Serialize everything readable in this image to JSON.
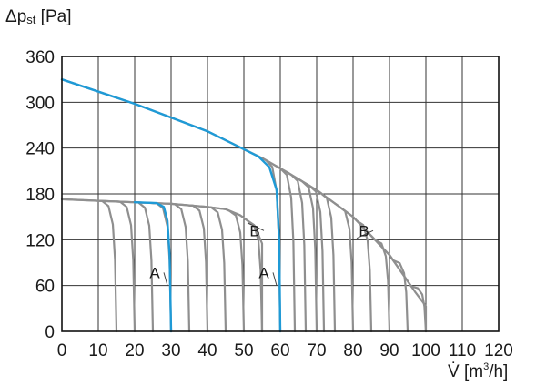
{
  "chart_data": {
    "type": "line",
    "ylabel_main": "Δp",
    "ylabel_sub": "st",
    "ylabel_unit": " [Pa]",
    "xlabel_main": "V̇ [m",
    "xlabel_sup": "3",
    "xlabel_tail": "/h]",
    "xlim": [
      0,
      120
    ],
    "ylim": [
      0,
      360
    ],
    "x_ticks": [
      0,
      10,
      20,
      30,
      40,
      50,
      60,
      70,
      80,
      90,
      100,
      110,
      120
    ],
    "y_ticks": [
      0,
      60,
      120,
      180,
      240,
      300,
      360
    ],
    "grid": true,
    "colors": {
      "family": "#8f8f8f",
      "highlight": "#1f9ad6"
    },
    "envelope_A": [
      [
        0,
        173
      ],
      [
        10,
        171
      ],
      [
        20,
        169
      ],
      [
        30,
        167
      ],
      [
        40,
        163
      ],
      [
        45,
        160
      ],
      [
        49,
        152
      ],
      [
        53,
        138
      ],
      [
        55,
        115
      ]
    ],
    "cutoffs_A": [
      15,
      20,
      25,
      30,
      35,
      40,
      45,
      50,
      55
    ],
    "envelope_B": [
      [
        0,
        330
      ],
      [
        20,
        298
      ],
      [
        40,
        262
      ],
      [
        55,
        227
      ],
      [
        62,
        208
      ],
      [
        70,
        185
      ],
      [
        80,
        150
      ],
      [
        90,
        100
      ],
      [
        97,
        52
      ],
      [
        100,
        33
      ]
    ],
    "cutoffs_B": [
      60,
      64,
      67,
      70,
      72,
      75,
      80,
      85,
      90,
      95,
      100
    ],
    "highlight_A": [
      [
        20,
        169
      ],
      [
        26,
        168
      ],
      [
        28,
        163
      ],
      [
        29,
        145
      ],
      [
        29.6,
        100
      ],
      [
        30,
        0
      ]
    ],
    "highlight_B": [
      [
        0,
        330
      ],
      [
        20,
        298
      ],
      [
        40,
        262
      ],
      [
        54,
        229
      ],
      [
        57,
        215
      ],
      [
        59,
        185
      ],
      [
        59.7,
        120
      ],
      [
        60,
        0
      ]
    ],
    "annotations": [
      {
        "text": "A",
        "x": 26.5,
        "y": 77,
        "tx": 29,
        "ty": 60
      },
      {
        "text": "A",
        "x": 56.5,
        "y": 77,
        "tx": 59,
        "ty": 60
      },
      {
        "text": "B",
        "x": 54,
        "y": 132,
        "tx": 51,
        "ty": 142
      },
      {
        "text": "B",
        "x": 84,
        "y": 132,
        "tx": 81,
        "ty": 122
      }
    ]
  }
}
